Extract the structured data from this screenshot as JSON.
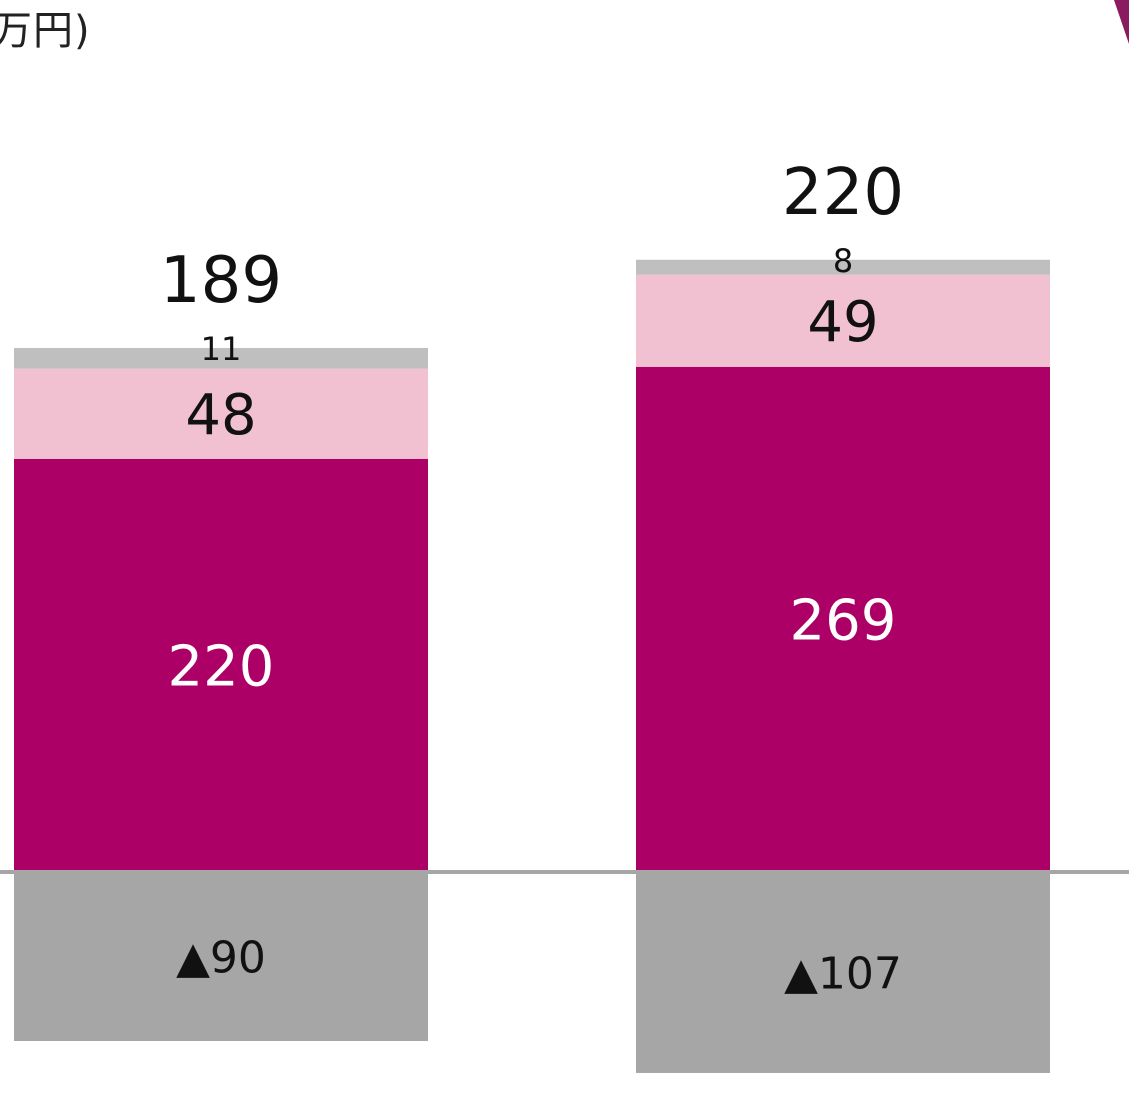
{
  "header": {
    "unit_label": "万円)"
  },
  "chart_data": {
    "type": "bar",
    "stacked": true,
    "categories": [
      "",
      ""
    ],
    "series": [
      {
        "values": [
          -90,
          -107
        ],
        "labels": [
          "▲90",
          "▲107"
        ],
        "color": "#a6a6a6",
        "label_color": "#111111"
      },
      {
        "values": [
          220,
          269
        ],
        "labels": [
          "220",
          "269"
        ],
        "color": "#ad0066",
        "label_color": "#ffffff"
      },
      {
        "values": [
          48,
          49
        ],
        "labels": [
          "48",
          "49"
        ],
        "color": "#f2c1d1",
        "label_color": "#111111"
      },
      {
        "values": [
          11,
          8
        ],
        "labels": [
          "11",
          "8"
        ],
        "color": "#bfbfbf",
        "label_color": "#111111"
      }
    ],
    "totals": [
      189,
      220
    ],
    "total_labels": [
      "189",
      "220"
    ],
    "zero_line_color": "#a6a6a6",
    "grid": false,
    "legend": "none"
  }
}
